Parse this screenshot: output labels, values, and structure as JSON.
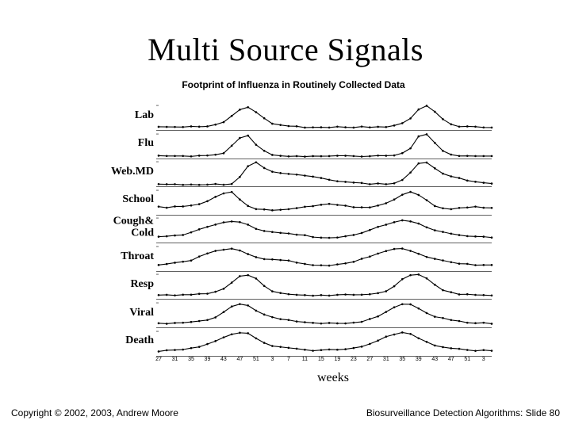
{
  "title": "Multi Source Signals",
  "chart_title": "Footprint of Influenza in Routinely Collected Data",
  "x_axis_label": "weeks",
  "footer_left": "Copyright © 2002, 2003, Andrew Moore",
  "footer_right": "Biosurveillance Detection Algorithms: Slide 80",
  "background_color": "#ffffff",
  "text_color": "#000000",
  "line_color": "#000000",
  "marker_color": "#000000",
  "title_fontsize": 40,
  "chart_title_fontsize": 12,
  "panel_label_fontsize": 14,
  "tick_fontsize": 7,
  "n_points": 42,
  "line_width": 1.1,
  "marker_radius": 1.3,
  "x_ticks": [
    "27",
    "31",
    "35",
    "39",
    "43",
    "47",
    "51",
    "3",
    "7",
    "11",
    "15",
    "19",
    "23",
    "27",
    "31",
    "35",
    "39",
    "43",
    "47",
    "51",
    "3"
  ],
  "x_tick_indices": [
    0,
    2,
    4,
    6,
    8,
    10,
    12,
    14,
    16,
    18,
    20,
    22,
    24,
    26,
    28,
    30,
    32,
    34,
    36,
    38,
    40
  ],
  "panels": [
    {
      "label": "Lab",
      "values": [
        10,
        12,
        11,
        10,
        12,
        13,
        14,
        20,
        30,
        55,
        78,
        90,
        70,
        45,
        25,
        18,
        14,
        12,
        10,
        10,
        11,
        10,
        10,
        10,
        10,
        11,
        10,
        10,
        12,
        15,
        25,
        45,
        80,
        95,
        72,
        40,
        22,
        14,
        12,
        11,
        10,
        10
      ]
    },
    {
      "label": "Flu",
      "values": [
        8,
        7,
        8,
        8,
        9,
        10,
        11,
        14,
        20,
        50,
        80,
        92,
        55,
        28,
        14,
        10,
        9,
        8,
        8,
        8,
        8,
        8,
        8,
        8,
        8,
        8,
        8,
        9,
        10,
        12,
        18,
        40,
        85,
        95,
        60,
        30,
        15,
        10,
        9,
        8,
        8,
        8
      ]
    },
    {
      "label": "Web.MD",
      "values": [
        6,
        6,
        6,
        6,
        6,
        6,
        6,
        6,
        6,
        6,
        35,
        80,
        95,
        70,
        55,
        50,
        48,
        45,
        40,
        35,
        30,
        25,
        20,
        15,
        12,
        10,
        9,
        8,
        8,
        10,
        25,
        55,
        90,
        92,
        70,
        50,
        40,
        30,
        22,
        16,
        12,
        10
      ]
    },
    {
      "label": "School",
      "values": [
        30,
        28,
        32,
        30,
        34,
        40,
        55,
        70,
        82,
        90,
        60,
        35,
        22,
        18,
        16,
        18,
        20,
        25,
        30,
        35,
        40,
        42,
        40,
        35,
        30,
        28,
        30,
        35,
        45,
        60,
        78,
        90,
        80,
        55,
        35,
        25,
        22,
        25,
        28,
        30,
        28,
        26
      ]
    },
    {
      "label": "Cough&\nCold",
      "values": [
        20,
        22,
        25,
        30,
        38,
        50,
        62,
        72,
        80,
        85,
        82,
        70,
        55,
        45,
        40,
        38,
        35,
        30,
        26,
        22,
        20,
        18,
        20,
        24,
        30,
        38,
        48,
        60,
        72,
        82,
        88,
        85,
        75,
        60,
        48,
        40,
        35,
        30,
        26,
        22,
        20,
        20
      ]
    },
    {
      "label": "Throat",
      "values": [
        25,
        28,
        30,
        34,
        42,
        55,
        68,
        78,
        85,
        88,
        82,
        68,
        55,
        48,
        45,
        44,
        40,
        34,
        28,
        24,
        22,
        22,
        24,
        28,
        36,
        46,
        58,
        70,
        80,
        86,
        88,
        80,
        68,
        55,
        46,
        40,
        36,
        30,
        26,
        24,
        22,
        22
      ]
    },
    {
      "label": "Resp",
      "values": [
        12,
        13,
        14,
        15,
        16,
        18,
        20,
        25,
        40,
        65,
        88,
        95,
        78,
        50,
        30,
        22,
        18,
        16,
        14,
        13,
        12,
        12,
        13,
        14,
        15,
        16,
        18,
        20,
        28,
        48,
        75,
        92,
        96,
        80,
        55,
        34,
        24,
        18,
        15,
        14,
        13,
        12
      ]
    },
    {
      "label": "Viral",
      "values": [
        14,
        15,
        15,
        16,
        18,
        22,
        28,
        40,
        60,
        80,
        92,
        85,
        65,
        48,
        38,
        32,
        28,
        24,
        20,
        18,
        16,
        15,
        15,
        16,
        18,
        22,
        30,
        44,
        62,
        80,
        92,
        90,
        74,
        55,
        42,
        34,
        28,
        22,
        18,
        16,
        15,
        15
      ]
    },
    {
      "label": "Death",
      "values": [
        18,
        20,
        22,
        24,
        28,
        35,
        45,
        58,
        72,
        84,
        92,
        88,
        70,
        52,
        40,
        34,
        30,
        26,
        22,
        20,
        20,
        22,
        24,
        26,
        30,
        36,
        46,
        60,
        74,
        86,
        92,
        86,
        70,
        54,
        42,
        34,
        30,
        26,
        22,
        20,
        20,
        20
      ]
    }
  ]
}
